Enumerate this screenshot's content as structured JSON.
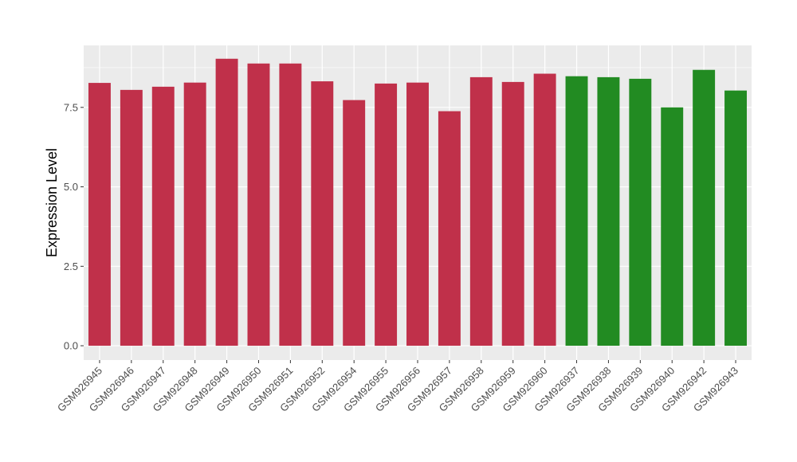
{
  "chart_data": {
    "type": "bar",
    "title": "",
    "xlabel": "",
    "ylabel": "Expression Level",
    "ylim": [
      -0.45,
      9.45
    ],
    "yticks": [
      0.0,
      2.5,
      5.0,
      7.5
    ],
    "ytick_labels": [
      "0.0",
      "2.5",
      "5.0",
      "7.5"
    ],
    "grid": true,
    "panel_background": "#ebebeb",
    "categories": [
      "GSM926945",
      "GSM926946",
      "GSM926947",
      "GSM926948",
      "GSM926949",
      "GSM926950",
      "GSM926951",
      "GSM926952",
      "GSM926954",
      "GSM926955",
      "GSM926956",
      "GSM926957",
      "GSM926958",
      "GSM926959",
      "GSM926960",
      "GSM926937",
      "GSM926938",
      "GSM926939",
      "GSM926940",
      "GSM926942",
      "GSM926943"
    ],
    "values": [
      8.27,
      8.05,
      8.15,
      8.28,
      9.03,
      8.88,
      8.88,
      8.32,
      7.73,
      8.25,
      8.28,
      7.38,
      8.45,
      8.3,
      8.56,
      8.48,
      8.45,
      8.4,
      7.5,
      8.68,
      8.03
    ],
    "colors": [
      "#c0304a",
      "#c0304a",
      "#c0304a",
      "#c0304a",
      "#c0304a",
      "#c0304a",
      "#c0304a",
      "#c0304a",
      "#c0304a",
      "#c0304a",
      "#c0304a",
      "#c0304a",
      "#c0304a",
      "#c0304a",
      "#c0304a",
      "#228b22",
      "#228b22",
      "#228b22",
      "#228b22",
      "#228b22",
      "#228b22"
    ]
  }
}
